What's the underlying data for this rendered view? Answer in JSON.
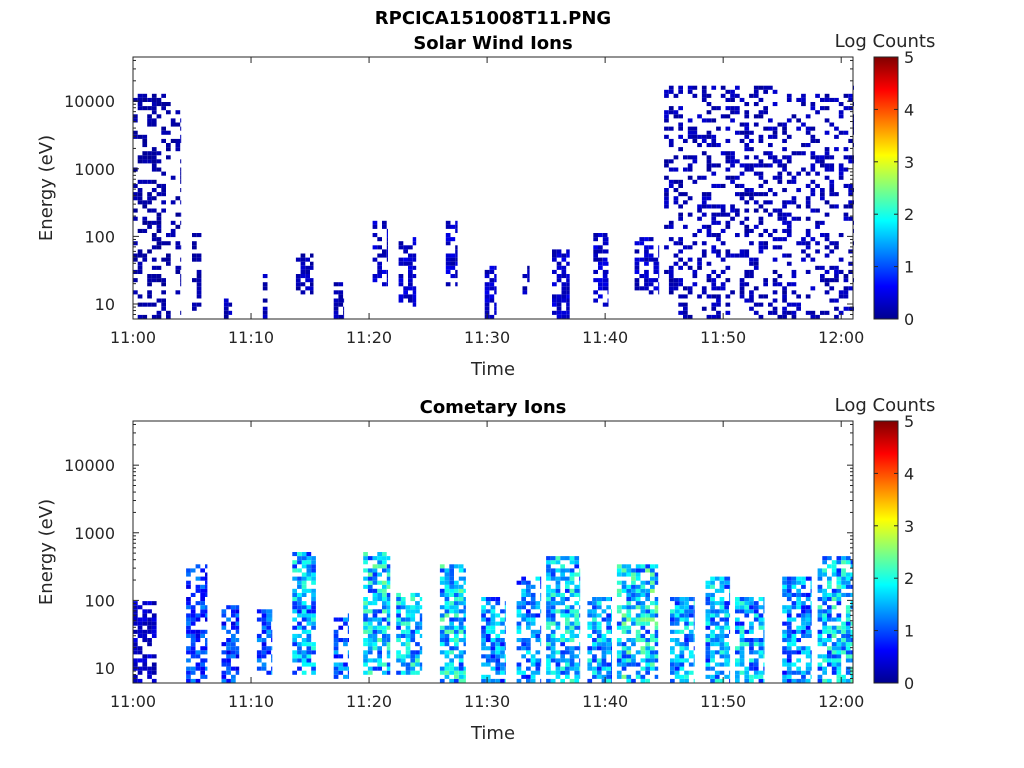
{
  "figure": {
    "filename": "RPCICA151008T11.PNG"
  },
  "colorbar": {
    "label": "Log Counts",
    "ticks": [
      "0",
      "1",
      "2",
      "3",
      "4",
      "5"
    ],
    "colormap": "jet",
    "range": [
      0,
      5
    ]
  },
  "chart_data": [
    {
      "type": "heatmap",
      "title": "Solar Wind Ions",
      "xlabel": "Time",
      "ylabel": "Energy (eV)",
      "x_ticks": [
        "11:00",
        "11:10",
        "11:20",
        "11:30",
        "11:40",
        "11:50",
        "12:00"
      ],
      "y_ticks": [
        "10",
        "100",
        "1000",
        "10000"
      ],
      "y_scale": "log",
      "ylim": [
        6,
        45000
      ],
      "xlim": [
        "11:00",
        "12:01"
      ],
      "colorbar_label": "Log Counts",
      "clim": [
        0,
        5
      ],
      "events": [
        {
          "t": [
            0.0,
            4.0
          ],
          "e": [
            6,
            12000
          ],
          "level": 0.2,
          "density": 0.35
        },
        {
          "t": [
            5.0,
            5.8
          ],
          "e": [
            8,
            100
          ],
          "level": 0.2,
          "density": 0.4
        },
        {
          "t": [
            7.7,
            8.4
          ],
          "e": [
            6,
            11
          ],
          "level": 0.3,
          "density": 0.8
        },
        {
          "t": [
            11.0,
            11.4
          ],
          "e": [
            6,
            25
          ],
          "level": 0.3,
          "density": 0.7
        },
        {
          "t": [
            13.8,
            15.3
          ],
          "e": [
            15,
            50
          ],
          "level": 0.3,
          "density": 0.6
        },
        {
          "t": [
            17.0,
            17.8
          ],
          "e": [
            6,
            20
          ],
          "level": 0.3,
          "density": 0.7
        },
        {
          "t": [
            20.3,
            21.6
          ],
          "e": [
            20,
            160
          ],
          "level": 0.4,
          "density": 0.6
        },
        {
          "t": [
            22.5,
            24.0
          ],
          "e": [
            10,
            90
          ],
          "level": 0.4,
          "density": 0.6
        },
        {
          "t": [
            26.5,
            27.5
          ],
          "e": [
            20,
            170
          ],
          "level": 0.4,
          "density": 0.6
        },
        {
          "t": [
            29.8,
            30.8
          ],
          "e": [
            6,
            35
          ],
          "level": 0.4,
          "density": 0.6
        },
        {
          "t": [
            33.0,
            33.6
          ],
          "e": [
            15,
            35
          ],
          "level": 0.3,
          "density": 0.5
        },
        {
          "t": [
            35.5,
            37.0
          ],
          "e": [
            6,
            60
          ],
          "level": 0.4,
          "density": 0.7
        },
        {
          "t": [
            39.0,
            40.2
          ],
          "e": [
            10,
            110
          ],
          "level": 0.4,
          "density": 0.6
        },
        {
          "t": [
            42.5,
            44.5
          ],
          "e": [
            15,
            90
          ],
          "level": 0.4,
          "density": 0.6
        },
        {
          "t": [
            45.0,
            61.0
          ],
          "e": [
            6,
            15000
          ],
          "level": 0.3,
          "density": 0.3
        }
      ]
    },
    {
      "type": "heatmap",
      "title": "Cometary Ions",
      "xlabel": "Time",
      "ylabel": "Energy (eV)",
      "x_ticks": [
        "11:00",
        "11:10",
        "11:20",
        "11:30",
        "11:40",
        "11:50",
        "12:00"
      ],
      "y_ticks": [
        "10",
        "100",
        "1000",
        "10000"
      ],
      "y_scale": "log",
      "ylim": [
        6,
        45000
      ],
      "xlim": [
        "11:00",
        "12:01"
      ],
      "colorbar_label": "Log Counts",
      "clim": [
        0,
        5
      ],
      "events": [
        {
          "t": [
            0.0,
            2.0
          ],
          "e": [
            6,
            90
          ],
          "level": 0.4,
          "density": 0.6
        },
        {
          "t": [
            4.5,
            6.3
          ],
          "e": [
            6,
            300
          ],
          "level": 1.0,
          "density": 0.6
        },
        {
          "t": [
            7.5,
            9.0
          ],
          "e": [
            6,
            80
          ],
          "level": 1.0,
          "density": 0.6
        },
        {
          "t": [
            10.5,
            11.8
          ],
          "e": [
            8,
            70
          ],
          "level": 1.1,
          "density": 0.7
        },
        {
          "t": [
            13.5,
            15.5
          ],
          "e": [
            8,
            500
          ],
          "level": 1.6,
          "density": 0.7
        },
        {
          "t": [
            17.0,
            18.3
          ],
          "e": [
            6,
            60
          ],
          "level": 1.2,
          "density": 0.6
        },
        {
          "t": [
            19.5,
            21.8
          ],
          "e": [
            8,
            500
          ],
          "level": 1.8,
          "density": 0.7
        },
        {
          "t": [
            22.3,
            24.5
          ],
          "e": [
            8,
            120
          ],
          "level": 1.7,
          "density": 0.7
        },
        {
          "t": [
            26.0,
            28.2
          ],
          "e": [
            6,
            300
          ],
          "level": 1.8,
          "density": 0.7
        },
        {
          "t": [
            29.5,
            31.5
          ],
          "e": [
            6,
            100
          ],
          "level": 1.5,
          "density": 0.7
        },
        {
          "t": [
            32.5,
            34.5
          ],
          "e": [
            6,
            200
          ],
          "level": 1.4,
          "density": 0.6
        },
        {
          "t": [
            35.0,
            37.8
          ],
          "e": [
            6,
            400
          ],
          "level": 1.7,
          "density": 0.7
        },
        {
          "t": [
            38.5,
            40.5
          ],
          "e": [
            6,
            100
          ],
          "level": 1.6,
          "density": 0.7
        },
        {
          "t": [
            41.0,
            44.5
          ],
          "e": [
            6,
            300
          ],
          "level": 1.9,
          "density": 0.7
        },
        {
          "t": [
            45.5,
            47.5
          ],
          "e": [
            6,
            100
          ],
          "level": 1.6,
          "density": 0.7
        },
        {
          "t": [
            48.5,
            50.5
          ],
          "e": [
            6,
            200
          ],
          "level": 1.6,
          "density": 0.7
        },
        {
          "t": [
            51.0,
            53.5
          ],
          "e": [
            6,
            100
          ],
          "level": 1.6,
          "density": 0.7
        },
        {
          "t": [
            55.0,
            57.5
          ],
          "e": [
            6,
            200
          ],
          "level": 1.4,
          "density": 0.7
        },
        {
          "t": [
            58.0,
            61.0
          ],
          "e": [
            6,
            400
          ],
          "level": 1.7,
          "density": 0.7
        }
      ]
    }
  ]
}
